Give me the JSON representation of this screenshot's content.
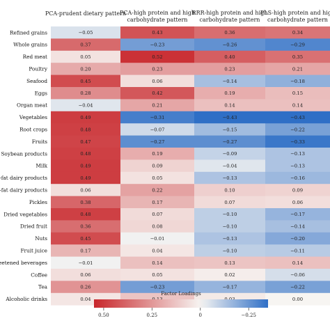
{
  "chart_data": {
    "type": "heatmap",
    "columns": [
      [
        "PCA-prudent dietary pattern"
      ],
      [
        "PCA-high protein and high",
        "carbohydrate pattern"
      ],
      [
        "RRR-high protein and high",
        "carbohydrate pattern"
      ],
      [
        "PLS-high protein and high",
        "carbohydrate pattern"
      ]
    ],
    "rows": [
      "Refined grains",
      "Whole grains",
      "Red meat",
      "Poultry",
      "Seafood",
      "Eggs",
      "Organ meat",
      "Vegetables",
      "Root crops",
      "Fruits",
      "Soybean products",
      "Milk",
      "Low-fat dairy products",
      "High-fat dairy products",
      "Pickles",
      "Dried vegetables",
      "Dried fruit",
      "Nuts",
      "Fruit juice",
      "Sweetened beverages",
      "Coffee",
      "Tea",
      "Alcoholic drinks"
    ],
    "values": [
      [
        -0.05,
        0.43,
        0.36,
        0.34
      ],
      [
        0.37,
        -0.23,
        -0.26,
        -0.29
      ],
      [
        0.05,
        0.52,
        0.4,
        0.35
      ],
      [
        0.2,
        0.23,
        0.23,
        0.21
      ],
      [
        0.45,
        0.06,
        -0.14,
        -0.18
      ],
      [
        0.28,
        0.42,
        0.19,
        0.15
      ],
      [
        -0.04,
        0.21,
        0.14,
        0.14
      ],
      [
        0.49,
        -0.31,
        -0.43,
        -0.43
      ],
      [
        0.48,
        -0.07,
        -0.15,
        -0.22
      ],
      [
        0.47,
        -0.27,
        -0.27,
        -0.33
      ],
      [
        0.48,
        0.19,
        -0.09,
        -0.13
      ],
      [
        0.49,
        0.09,
        -0.04,
        -0.13
      ],
      [
        0.49,
        0.05,
        -0.13,
        -0.16
      ],
      [
        0.06,
        0.22,
        0.1,
        0.09
      ],
      [
        0.38,
        0.17,
        0.07,
        0.06
      ],
      [
        0.48,
        0.07,
        -0.1,
        -0.17
      ],
      [
        0.36,
        0.08,
        -0.1,
        -0.14
      ],
      [
        0.45,
        -0.01,
        -0.13,
        -0.2
      ],
      [
        0.17,
        0.04,
        -0.1,
        -0.11
      ],
      [
        -0.01,
        0.14,
        0.13,
        0.14
      ],
      [
        0.06,
        0.05,
        0.02,
        -0.06
      ],
      [
        0.26,
        -0.23,
        -0.17,
        -0.22
      ],
      [
        0.04,
        0.13,
        0.03,
        0.0
      ]
    ],
    "value_labels": [
      [
        "−0.05",
        "0.43",
        "0.36",
        "0.34"
      ],
      [
        "0.37",
        "−0.23",
        "−0.26",
        "−0.29"
      ],
      [
        "0.05",
        "0.52",
        "0.40",
        "0.35"
      ],
      [
        "0.20",
        "0.23",
        "0.23",
        "0.21"
      ],
      [
        "0.45",
        "0.06",
        "−0.14",
        "−0.18"
      ],
      [
        "0.28",
        "0.42",
        "0.19",
        "0.15"
      ],
      [
        "−0.04",
        "0.21",
        "0.14",
        "0.14"
      ],
      [
        "0.49",
        "−0.31",
        "−0.43",
        "−0.43"
      ],
      [
        "0.48",
        "−0.07",
        "−0.15",
        "−0.22"
      ],
      [
        "0.47",
        "−0.27",
        "−0.27",
        "−0.33"
      ],
      [
        "0.48",
        "0.19",
        "−0.09",
        "−0.13"
      ],
      [
        "0.49",
        "0.09",
        "−0.04",
        "−0.13"
      ],
      [
        "0.49",
        "0.05",
        "−0.13",
        "−0.16"
      ],
      [
        "0.06",
        "0.22",
        "0.10",
        "0.09"
      ],
      [
        "0.38",
        "0.17",
        "0.07",
        "0.06"
      ],
      [
        "0.48",
        "0.07",
        "−0.10",
        "−0.17"
      ],
      [
        "0.36",
        "0.08",
        "−0.10",
        "−0.14"
      ],
      [
        "0.45",
        "−0.01",
        "−0.13",
        "−0.20"
      ],
      [
        "0.17",
        "0.04",
        "−0.10",
        "−0.11"
      ],
      [
        "−0.01",
        "0.14",
        "0.13",
        "0.14"
      ],
      [
        "0.06",
        "0.05",
        "0.02",
        "−0.06"
      ],
      [
        "0.26",
        "−0.23",
        "−0.17",
        "−0.22"
      ],
      [
        "0.04",
        "0.13",
        "0.03",
        "0.00"
      ]
    ],
    "color_scale": {
      "positive_color": "#c8262b",
      "neutral_color": "#f7f5f2",
      "negative_color": "#2f6fc6",
      "vmax": 0.55,
      "vmin": -0.35
    },
    "legend": {
      "title": "Factor Loadings",
      "placement": "bottom",
      "tick_values": [
        0.5,
        0.25,
        0,
        -0.25
      ],
      "tick_labels": [
        "0.50",
        "0.25",
        "0",
        "−0.25"
      ],
      "range": [
        0.55,
        -0.35
      ]
    }
  }
}
